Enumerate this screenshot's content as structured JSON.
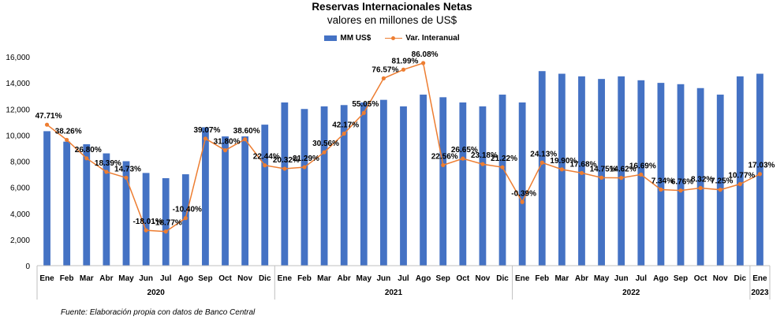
{
  "title": "Reservas Internacionales Netas",
  "subtitle": "valores en millones de US$",
  "source": "Fuente: Elaboración propia con datos de Banco Central",
  "colors": {
    "bars": "#4472C4",
    "line": "#ED7D31",
    "axis": "#BFBFBF"
  },
  "chart_data": {
    "type": "bar",
    "title": "Reservas Internacionales Netas",
    "subtitle": "valores en millones de US$",
    "ylim": [
      0,
      16000
    ],
    "yticks": [
      "0",
      "2,000",
      "4,000",
      "6,000",
      "8,000",
      "10,000",
      "12,000",
      "14,000",
      "16,000"
    ],
    "categories": [
      "Ene",
      "Feb",
      "Mar",
      "Abr",
      "May",
      "Jun",
      "Jul",
      "Ago",
      "Sep",
      "Oct",
      "Nov",
      "Dic",
      "Ene",
      "Feb",
      "Mar",
      "Abr",
      "May",
      "Jun",
      "Jul",
      "Ago",
      "Sep",
      "Oct",
      "Nov",
      "Dic",
      "Ene",
      "Feb",
      "Mar",
      "Abr",
      "May",
      "Jun",
      "Jul",
      "Ago",
      "Sep",
      "Oct",
      "Nov",
      "Dic",
      "Ene"
    ],
    "groups": [
      {
        "label": "2020",
        "count": 12
      },
      {
        "label": "2021",
        "count": 12
      },
      {
        "label": "2022",
        "count": 12
      },
      {
        "label": "2023",
        "count": 1
      }
    ],
    "series": [
      {
        "name": "MM US$",
        "type": "bar",
        "values": [
          10300,
          9500,
          9300,
          8600,
          8000,
          7100,
          6700,
          7000,
          10600,
          9900,
          9900,
          10800,
          12500,
          12000,
          12200,
          12300,
          12500,
          12700,
          12200,
          13100,
          12900,
          12500,
          12200,
          13100,
          12500,
          14900,
          14700,
          14500,
          14300,
          14500,
          14200,
          14000,
          13900,
          13600,
          13100,
          14500,
          14700
        ]
      },
      {
        "name": "Var. Interanual",
        "type": "line",
        "values": [
          47.71,
          38.26,
          26.8,
          18.39,
          14.73,
          -18.01,
          -18.77,
          -10.4,
          39.07,
          31.8,
          38.6,
          22.44,
          20.32,
          21.29,
          30.56,
          42.17,
          55.05,
          76.57,
          81.99,
          86.08,
          22.56,
          26.65,
          23.18,
          21.22,
          -0.39,
          24.13,
          19.9,
          17.68,
          14.75,
          14.62,
          16.69,
          7.34,
          6.76,
          8.32,
          7.25,
          10.77,
          17.03
        ],
        "labels": [
          "47.71%",
          "38.26%",
          "26.80%",
          "18.39%",
          "14.73%",
          "-18.01%",
          "-18.77%",
          "-10.40%",
          "39.07%",
          "31.80%",
          "38.60%",
          "22.44%",
          "20.32%",
          "21.29%",
          "30.56%",
          "42.17%",
          "55.05%",
          "76.57%",
          "81.99%",
          "86.08%",
          "22.56%",
          "26.65%",
          "23.18%",
          "21.22%",
          "-0.39%",
          "24.13%",
          "19.90%",
          "17.68%",
          "14.75%",
          "14.62%",
          "16.69%",
          "7.34%",
          "6.76%",
          "8.32%",
          "7.25%",
          "10.77%",
          "17.03%"
        ]
      }
    ],
    "legend_position": "top-center",
    "grid": false
  }
}
